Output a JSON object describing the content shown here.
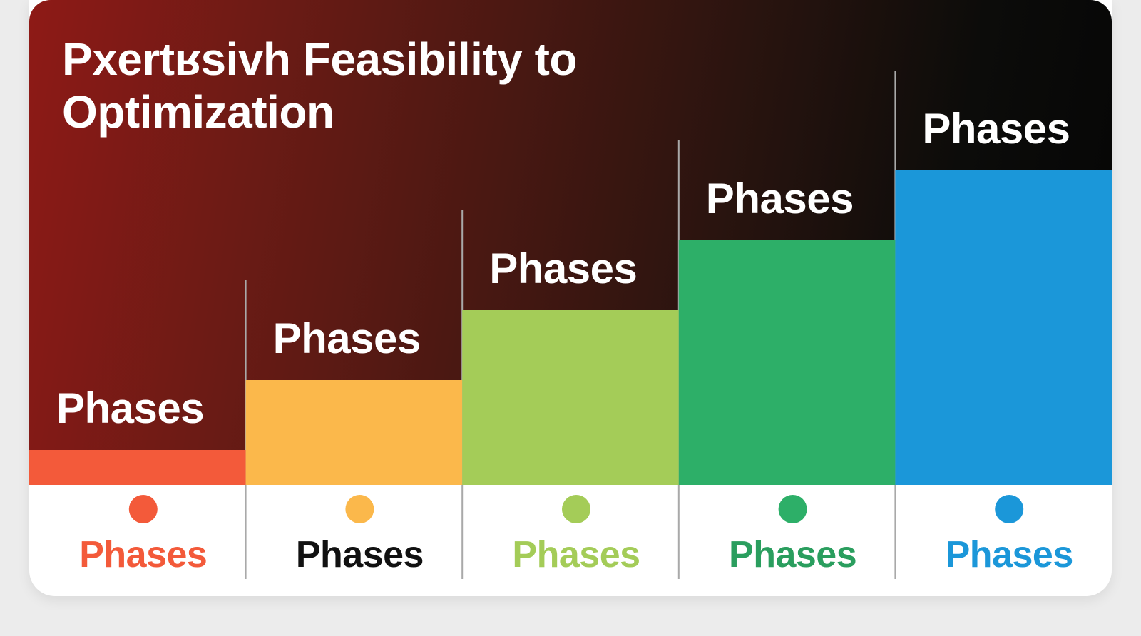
{
  "chart_data": {
    "type": "bar",
    "title": "Pxertʁsivh Feasibility to Optimization",
    "categories": [
      "Phases",
      "Phases",
      "Phases",
      "Phases",
      "Phases"
    ],
    "values": [
      1,
      3,
      5,
      7,
      9
    ],
    "bar_labels": [
      "Phases",
      "Phases",
      "Phases",
      "Phases",
      "Phases"
    ],
    "ylim": [
      0,
      10
    ],
    "grid": false,
    "legend": "none",
    "colors": [
      "#f35a3a",
      "#fbb84b",
      "#a4cc58",
      "#2daf68",
      "#1b97d9"
    ],
    "category_label_colors": [
      "#f35a3a",
      "#111111",
      "#a4cc58",
      "#2a9e5e",
      "#1b97d9"
    ]
  }
}
